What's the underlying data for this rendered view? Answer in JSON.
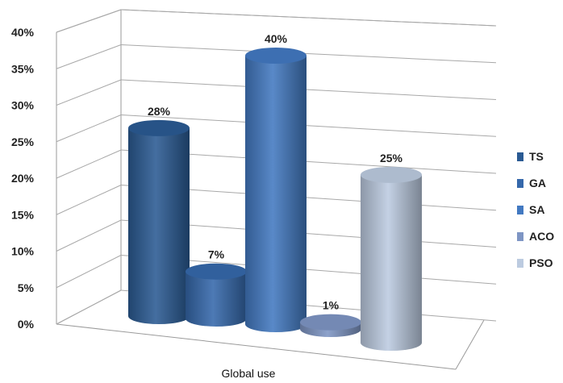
{
  "chart_data": {
    "type": "bar",
    "style": "3d-cylinder",
    "categories": [
      "Global use"
    ],
    "series": [
      {
        "name": "TS",
        "values": [
          28
        ],
        "label": "28%",
        "color": "#2a5a93"
      },
      {
        "name": "GA",
        "values": [
          7
        ],
        "label": "7%",
        "color": "#3568ab"
      },
      {
        "name": "SA",
        "values": [
          40
        ],
        "label": "40%",
        "color": "#4279c1"
      },
      {
        "name": "ACO",
        "values": [
          1
        ],
        "label": "1%",
        "color": "#7e95c4"
      },
      {
        "name": "PSO",
        "values": [
          25
        ],
        "label": "25%",
        "color": "#bccbe0"
      }
    ],
    "y_ticks": [
      "0%",
      "5%",
      "10%",
      "15%",
      "20%",
      "25%",
      "30%",
      "35%",
      "40%"
    ],
    "ylim": [
      0,
      40
    ],
    "xlabel": "Global use",
    "ylabel": "",
    "title": "",
    "grid": true,
    "legend": "right"
  }
}
